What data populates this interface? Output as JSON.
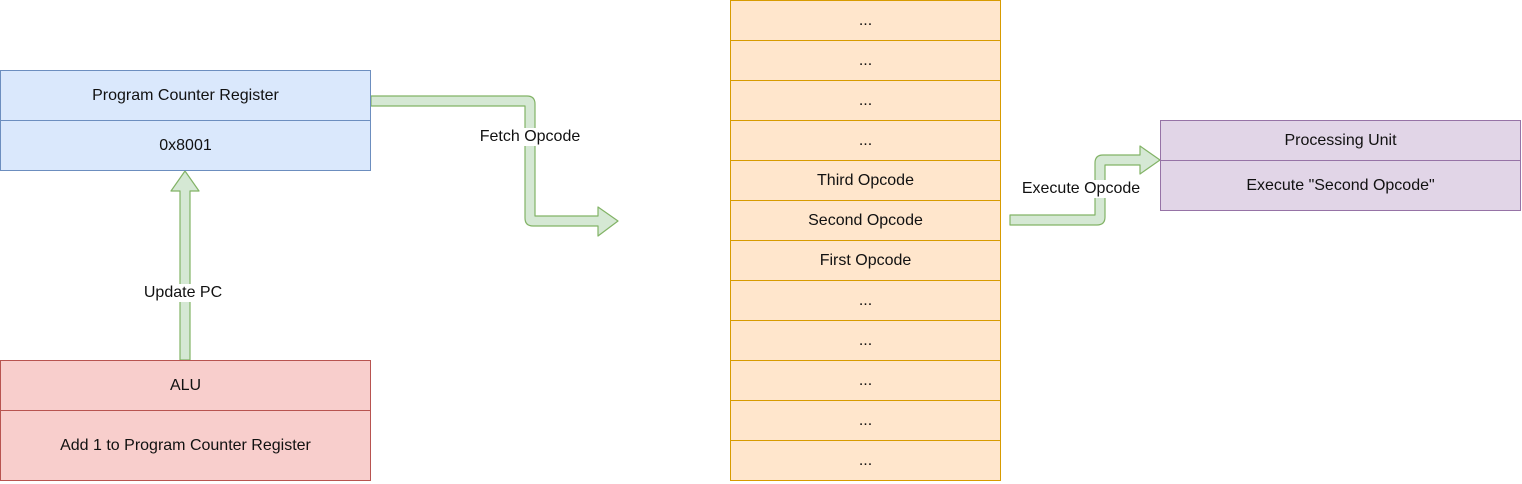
{
  "pc_register": {
    "title": "Program Counter Register",
    "value": "0x8001"
  },
  "alu": {
    "title": "ALU",
    "action": "Add 1 to Program Counter Register"
  },
  "processing_unit": {
    "title": "Processing Unit",
    "action": "Execute \"Second Opcode\""
  },
  "memory": {
    "cells": [
      "...",
      "...",
      "...",
      "...",
      "Third Opcode",
      "Second Opcode",
      "First Opcode",
      "...",
      "...",
      "...",
      "...",
      "..."
    ]
  },
  "edges": {
    "update_pc": "Update PC",
    "fetch_opcode": "Fetch Opcode",
    "execute_opcode": "Execute Opcode"
  },
  "colors": {
    "arrow_fill": "#d5e8d4",
    "arrow_stroke": "#82b366"
  }
}
